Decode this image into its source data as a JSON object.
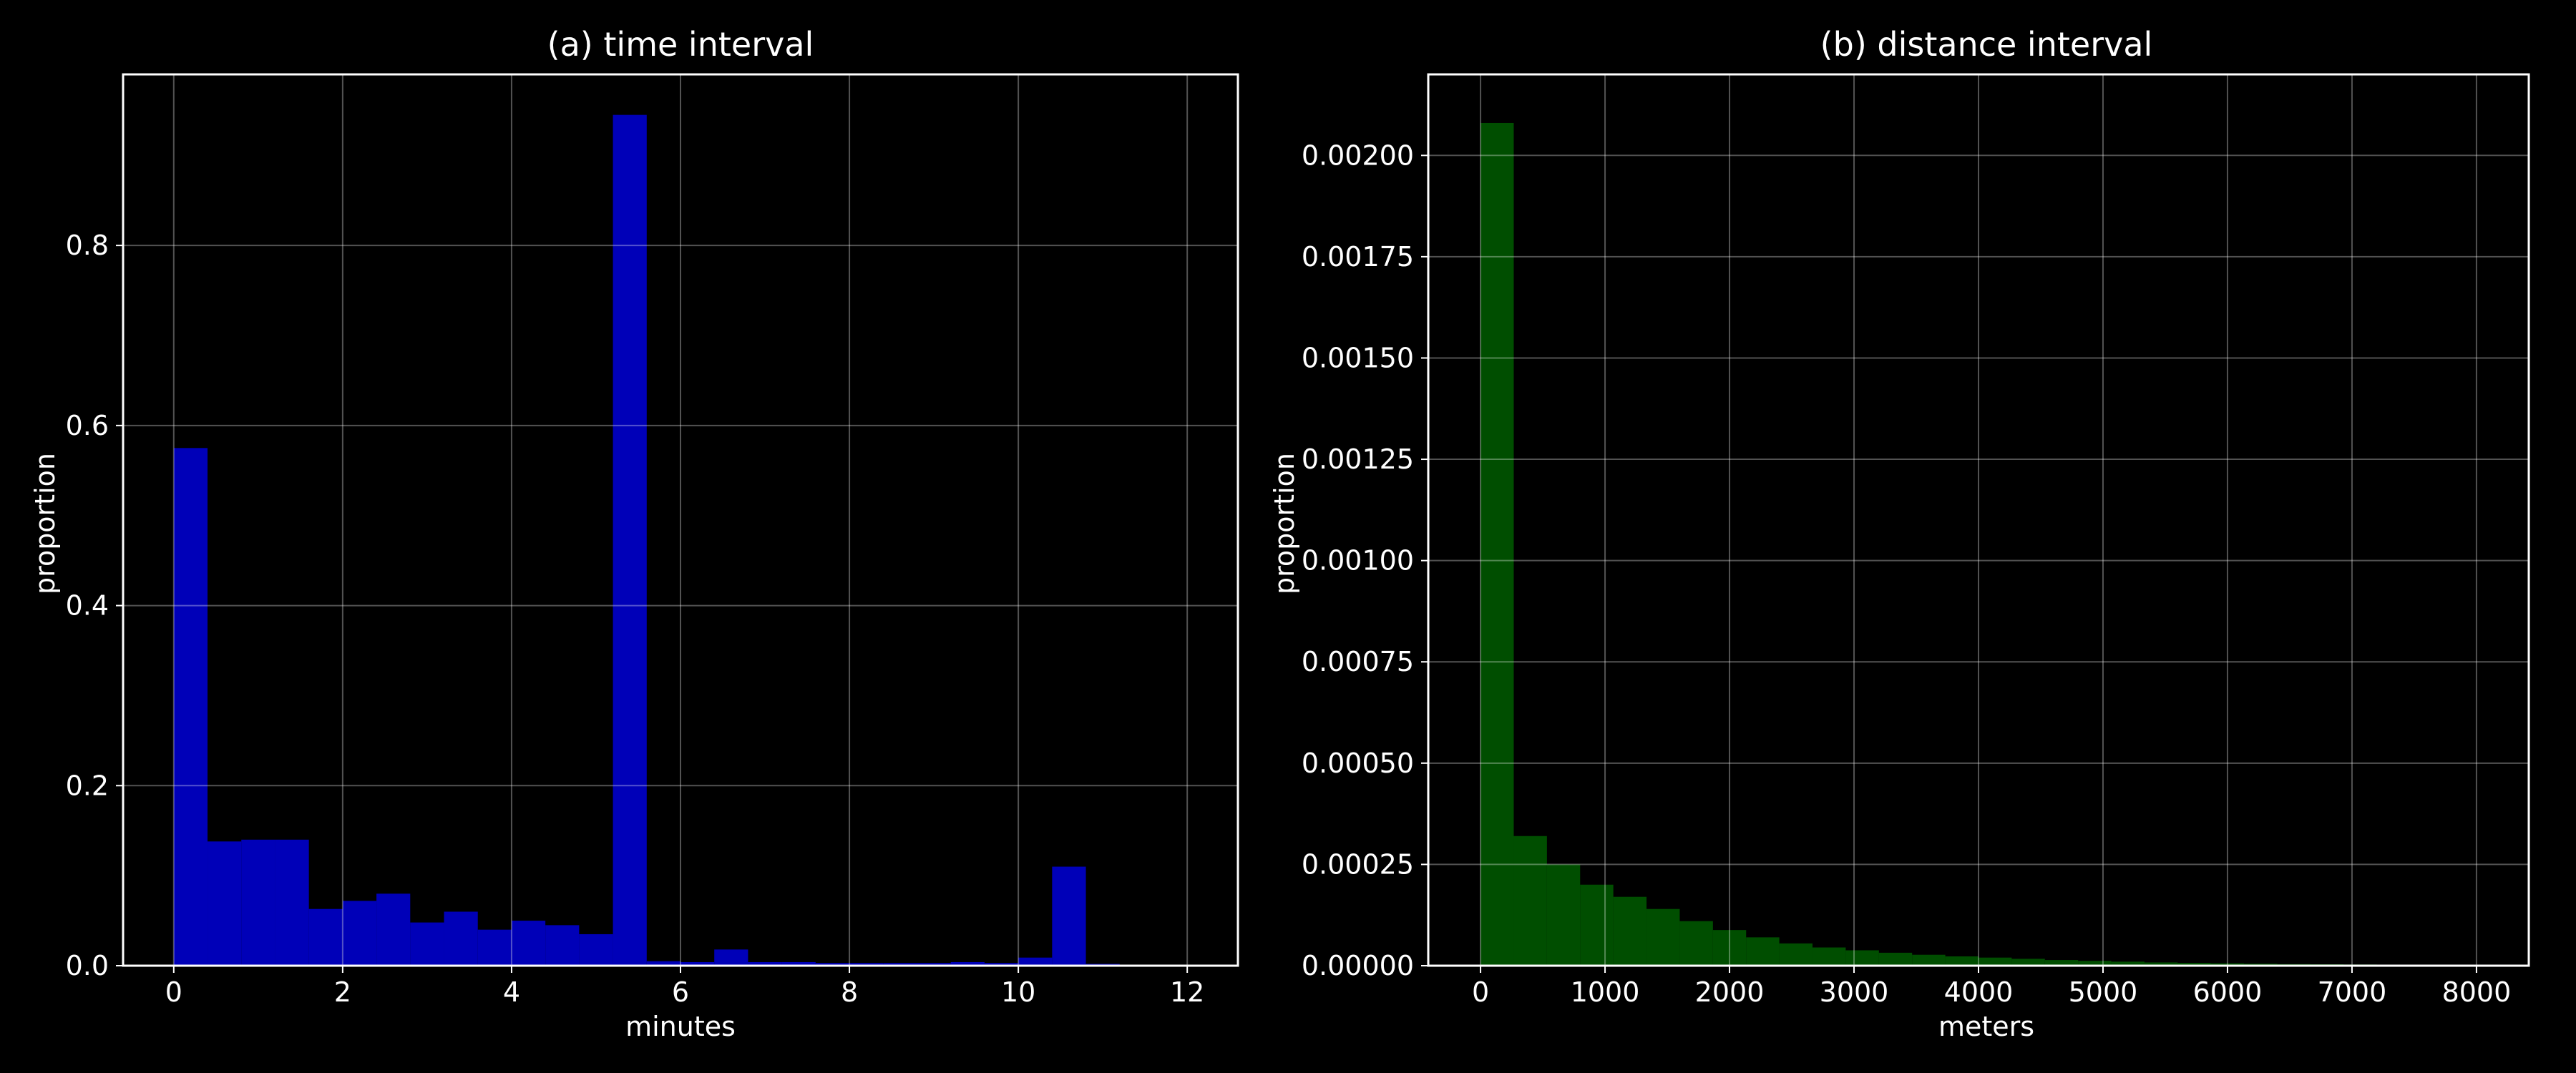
{
  "chart_data": [
    {
      "type": "bar",
      "title": "(a) time interval",
      "xlabel": "minutes",
      "ylabel": "proportion",
      "xlim": [
        -0.6,
        12.6
      ],
      "ylim": [
        0,
        0.99
      ],
      "xticks": [
        0,
        2,
        4,
        6,
        8,
        10,
        12
      ],
      "xtick_labels": [
        "0",
        "2",
        "4",
        "6",
        "8",
        "10",
        "12"
      ],
      "yticks": [
        0.0,
        0.2,
        0.4,
        0.6,
        0.8
      ],
      "ytick_labels": [
        "0.0",
        "0.2",
        "0.4",
        "0.6",
        "0.8"
      ],
      "grid": true,
      "color": "#0000c8",
      "bin_edges": [
        0,
        0.4,
        0.8,
        1.2,
        1.6,
        2.0,
        2.4,
        2.8,
        3.2,
        3.6,
        4.0,
        4.4,
        4.8,
        5.2,
        5.6,
        6.0,
        6.4,
        6.8,
        7.2,
        7.6,
        8.0,
        8.4,
        8.8,
        9.2,
        9.6,
        10.0,
        10.4,
        10.8,
        11.2,
        11.6,
        12.0
      ],
      "values": [
        0.575,
        0.138,
        0.14,
        0.14,
        0.063,
        0.072,
        0.08,
        0.048,
        0.06,
        0.04,
        0.05,
        0.045,
        0.035,
        0.945,
        0.005,
        0.004,
        0.018,
        0.004,
        0.004,
        0.003,
        0.003,
        0.003,
        0.003,
        0.004,
        0.003,
        0.009,
        0.11,
        0.002,
        0.001,
        0.001
      ]
    },
    {
      "type": "bar",
      "title": "(b) distance interval",
      "xlabel": "meters",
      "ylabel": "proportion",
      "xlim": [
        -420,
        8420
      ],
      "ylim": [
        0,
        0.0022
      ],
      "xticks": [
        0,
        1000,
        2000,
        3000,
        4000,
        5000,
        6000,
        7000,
        8000
      ],
      "xtick_labels": [
        "0",
        "1000",
        "2000",
        "3000",
        "4000",
        "5000",
        "6000",
        "7000",
        "8000"
      ],
      "yticks": [
        0,
        0.00025,
        0.0005,
        0.00075,
        0.001,
        0.00125,
        0.0015,
        0.00175,
        0.002
      ],
      "ytick_labels": [
        "0.00000",
        "0.00025",
        "0.00050",
        "0.00075",
        "0.00100",
        "0.00125",
        "0.00150",
        "0.00175",
        "0.00200"
      ],
      "grid": true,
      "color": "#005500",
      "bin_edges": [
        0,
        266.7,
        533.3,
        800,
        1066.7,
        1333.3,
        1600,
        1866.7,
        2133.3,
        2400,
        2666.7,
        2933.3,
        3200,
        3466.7,
        3733.3,
        4000,
        4266.7,
        4533.3,
        4800,
        5066.7,
        5333.3,
        5600,
        5866.7,
        6133.3,
        6400,
        6666.7,
        6933.3,
        7200,
        7466.7,
        7733.3,
        8000
      ],
      "values": [
        0.00208,
        0.00032,
        0.00025,
        0.0002,
        0.00017,
        0.00014,
        0.00011,
        8.8e-05,
        7e-05,
        5.5e-05,
        4.5e-05,
        3.8e-05,
        3.2e-05,
        2.7e-05,
        2.3e-05,
        2e-05,
        1.7e-05,
        1.4e-05,
        1.2e-05,
        1e-05,
        8e-06,
        7e-06,
        6e-06,
        5e-06,
        4e-06,
        3.5e-06,
        3e-06,
        2.5e-06,
        2e-06,
        1.5e-06
      ]
    }
  ]
}
